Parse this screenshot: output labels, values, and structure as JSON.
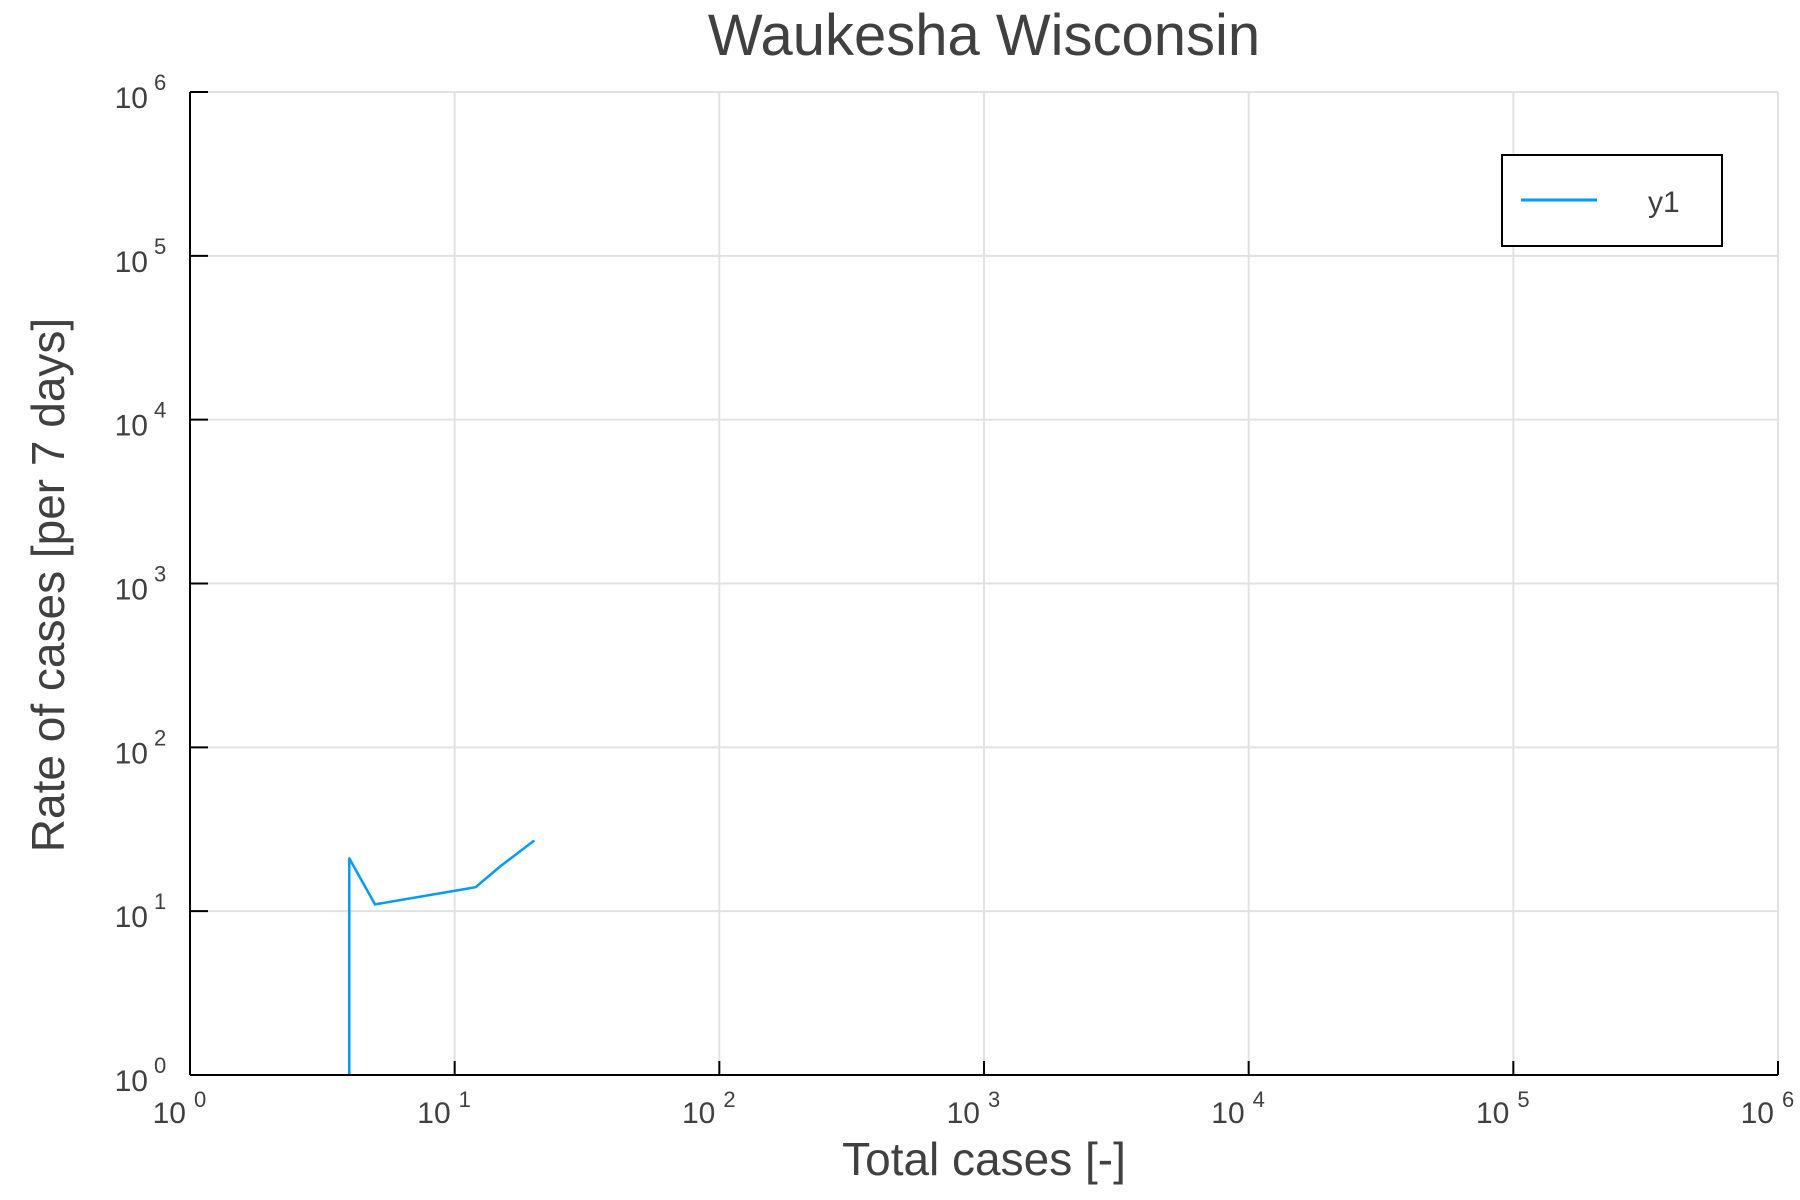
{
  "chart_data": {
    "type": "line",
    "title": "Waukesha Wisconsin",
    "xlabel": "Total cases [-]",
    "ylabel": "Rate of cases [per 7 days]",
    "xscale": "log",
    "yscale": "log",
    "xlim": [
      1,
      1000000
    ],
    "ylim": [
      1,
      1000000
    ],
    "grid": true,
    "legend_position": "top-right",
    "x_ticks": [
      {
        "value": 1,
        "base": "10",
        "exp": "0"
      },
      {
        "value": 10,
        "base": "10",
        "exp": "1"
      },
      {
        "value": 100,
        "base": "10",
        "exp": "2"
      },
      {
        "value": 1000,
        "base": "10",
        "exp": "3"
      },
      {
        "value": 10000,
        "base": "10",
        "exp": "4"
      },
      {
        "value": 100000,
        "base": "10",
        "exp": "5"
      },
      {
        "value": 1000000,
        "base": "10",
        "exp": "6"
      }
    ],
    "y_ticks": [
      {
        "value": 1,
        "base": "10",
        "exp": "0"
      },
      {
        "value": 10,
        "base": "10",
        "exp": "1"
      },
      {
        "value": 100,
        "base": "10",
        "exp": "2"
      },
      {
        "value": 1000,
        "base": "10",
        "exp": "3"
      },
      {
        "value": 10000,
        "base": "10",
        "exp": "4"
      },
      {
        "value": 100000,
        "base": "10",
        "exp": "5"
      },
      {
        "value": 1000000,
        "base": "10",
        "exp": "6"
      }
    ],
    "series": [
      {
        "name": "y1",
        "color": "#009af9",
        "x": [
          4,
          4,
          5,
          12,
          15,
          20
        ],
        "y": [
          1,
          21,
          11,
          14,
          19,
          27
        ]
      }
    ]
  }
}
